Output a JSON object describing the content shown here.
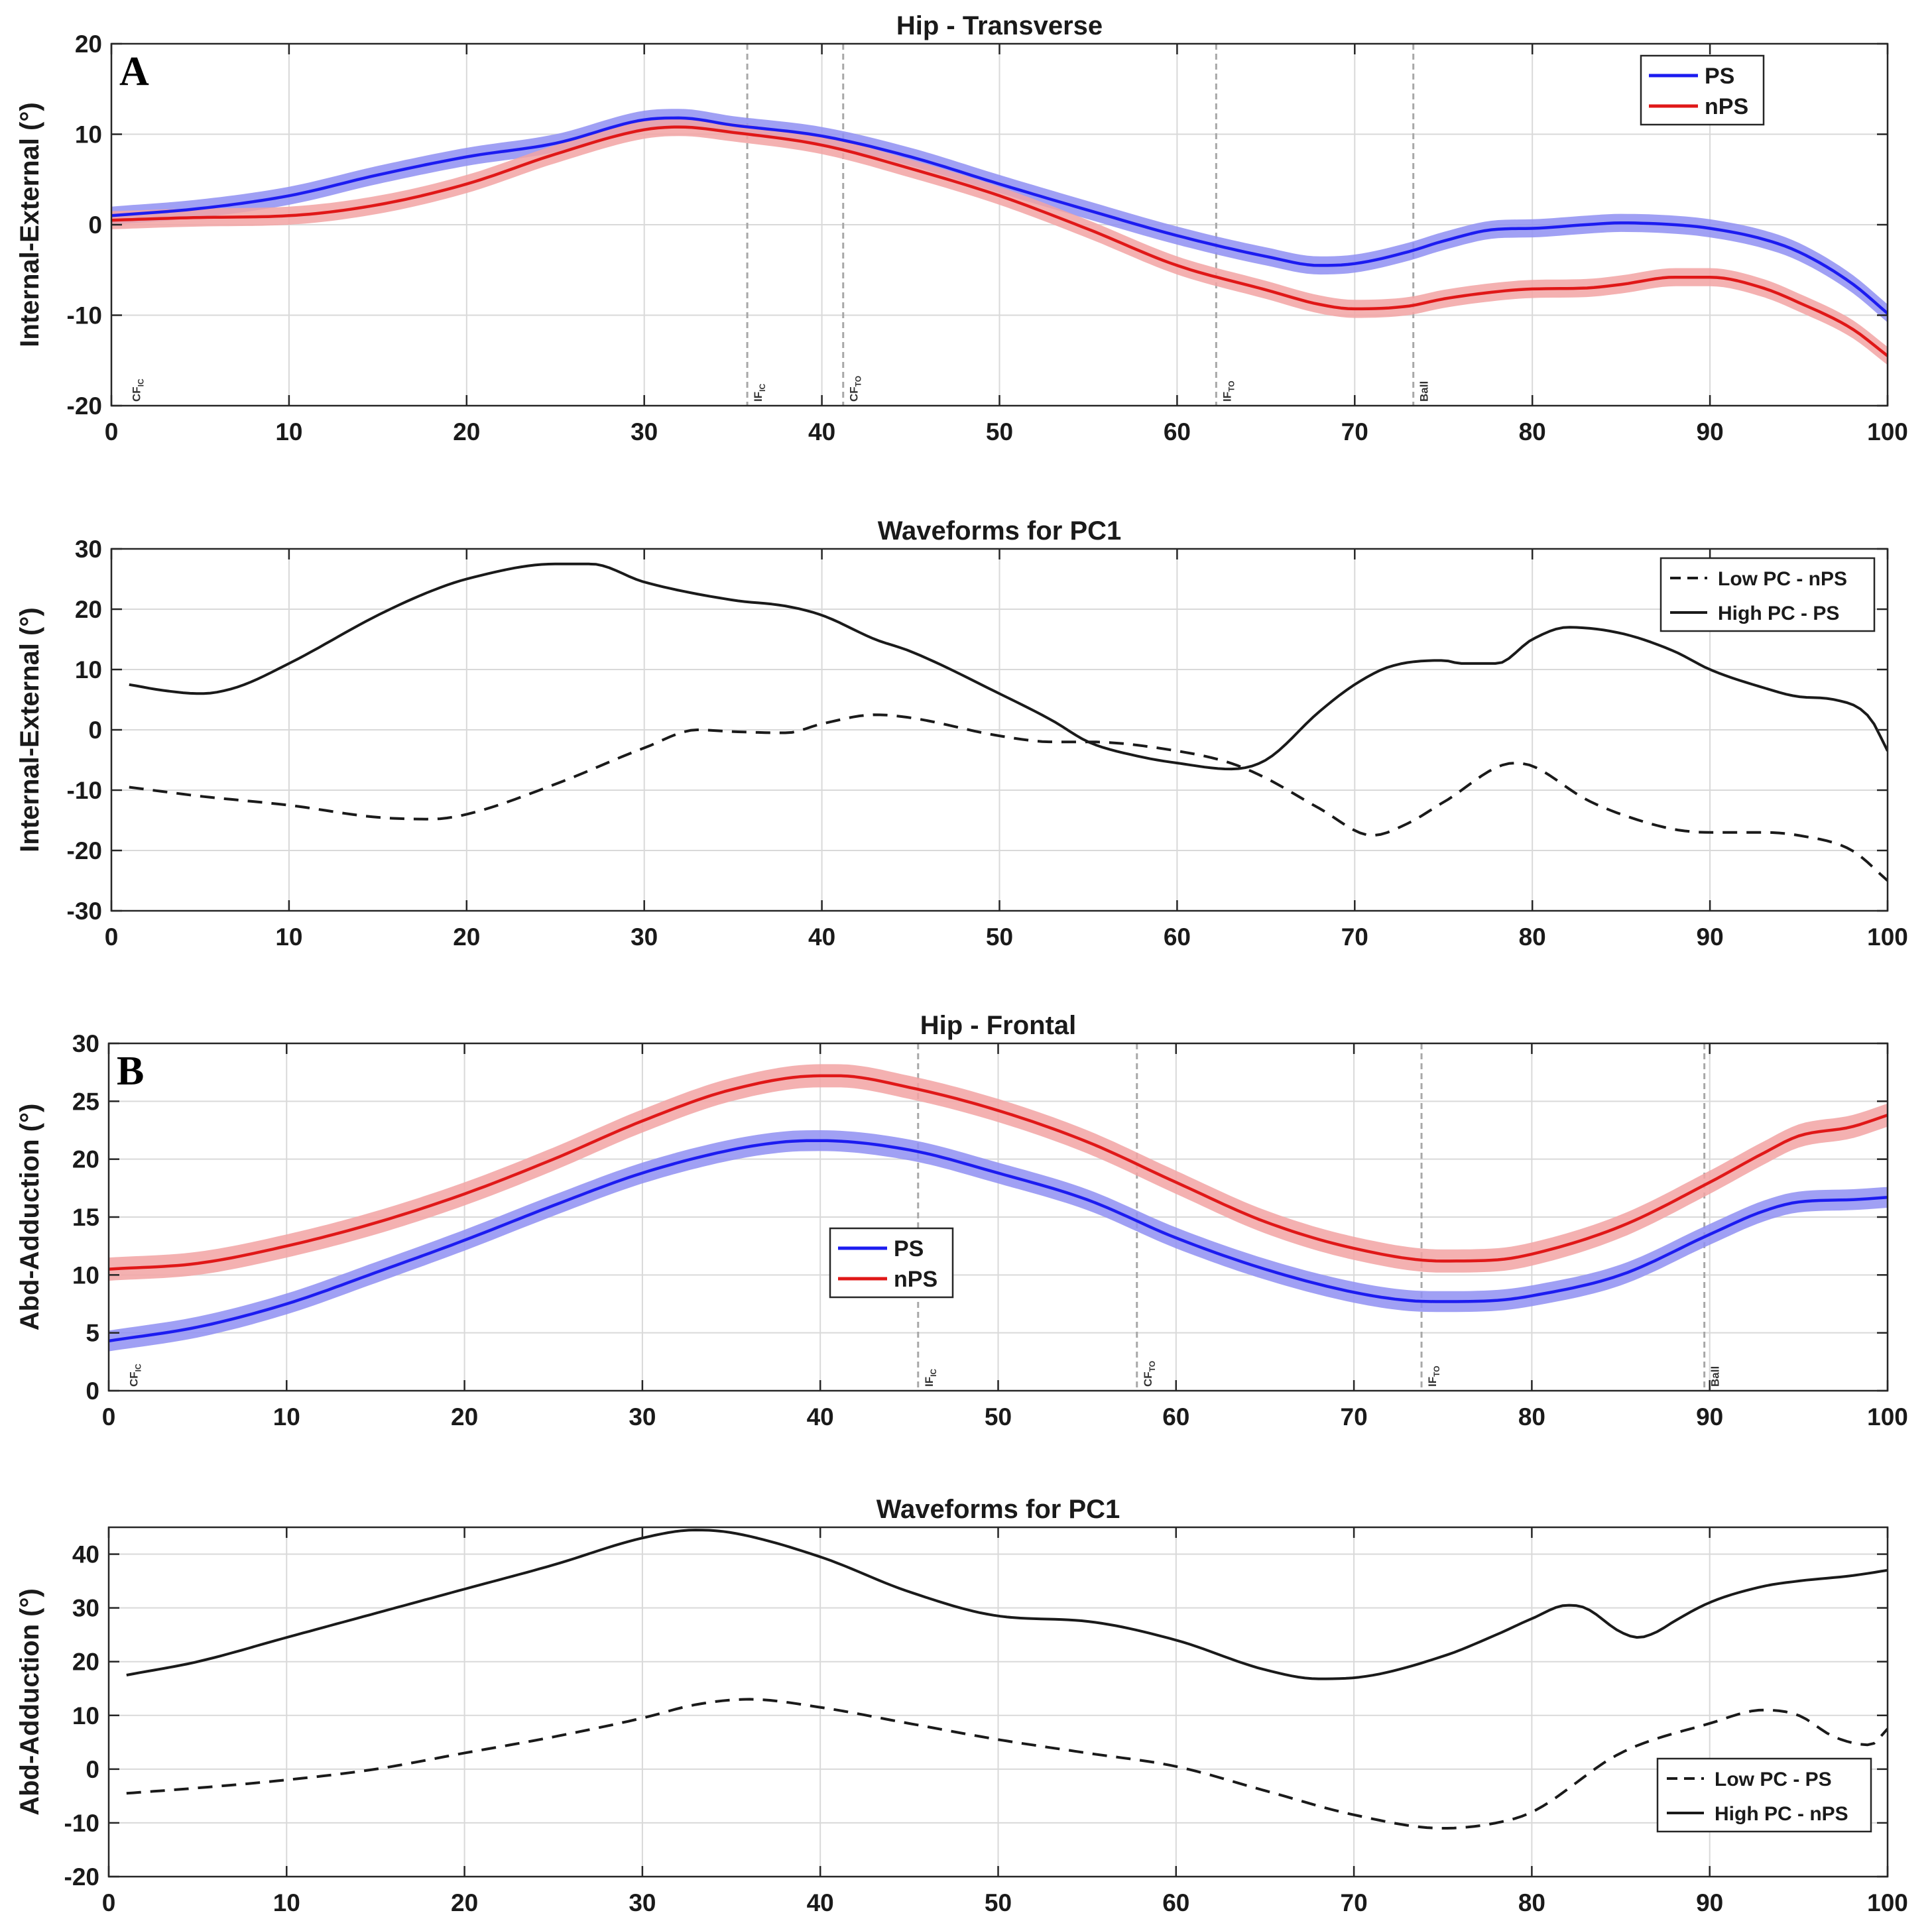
{
  "chart_data": [
    {
      "id": "hip-transverse",
      "type": "line",
      "title": "Hip - Transverse",
      "panel_label": "A",
      "xlabel": "",
      "ylabel": "Internal-External (°)",
      "xlim": [
        0,
        100
      ],
      "ylim": [
        -20,
        20
      ],
      "xticks": [
        0,
        10,
        20,
        30,
        40,
        50,
        60,
        70,
        80,
        90,
        100
      ],
      "yticks": [
        -20,
        -10,
        0,
        10,
        20
      ],
      "grid": true,
      "legend_position": "top-right",
      "events": [
        {
          "x": 0.8,
          "label": "CF",
          "sub": "IC"
        },
        {
          "x": 35.8,
          "label": "IF",
          "sub": "IC"
        },
        {
          "x": 41.2,
          "label": "CF",
          "sub": "TO"
        },
        {
          "x": 62.2,
          "label": "IF",
          "sub": "TO"
        },
        {
          "x": 73.3,
          "label": "Ball",
          "sub": ""
        }
      ],
      "series": [
        {
          "name": "PS",
          "color": "#1c1cf0",
          "band_color": "#8f8ff2",
          "band": 1.0,
          "x": [
            0,
            5,
            10,
            15,
            20,
            25,
            30,
            32,
            35,
            40,
            45,
            50,
            55,
            60,
            65,
            68,
            70,
            73,
            75,
            78,
            80,
            83,
            85,
            88,
            90,
            93,
            95,
            98,
            100
          ],
          "values": [
            1.0,
            1.8,
            3.2,
            5.5,
            7.5,
            9.0,
            11.6,
            11.8,
            11.0,
            9.8,
            7.5,
            4.5,
            1.6,
            -1.2,
            -3.5,
            -4.5,
            -4.3,
            -3.0,
            -1.8,
            -0.5,
            -0.4,
            0.0,
            0.2,
            0.0,
            -0.4,
            -1.6,
            -3.0,
            -6.5,
            -9.8
          ]
        },
        {
          "name": "nPS",
          "color": "#e01818",
          "band_color": "#f2a3a3",
          "band": 1.0,
          "x": [
            0,
            5,
            10,
            15,
            20,
            25,
            30,
            32,
            35,
            40,
            45,
            50,
            55,
            60,
            65,
            68,
            70,
            73,
            75,
            78,
            80,
            83,
            85,
            88,
            90,
            93,
            95,
            98,
            100
          ],
          "values": [
            0.5,
            0.8,
            1.0,
            2.2,
            4.5,
            7.8,
            10.5,
            10.8,
            10.2,
            8.8,
            6.2,
            3.2,
            -0.5,
            -4.5,
            -7.2,
            -8.8,
            -9.3,
            -9.0,
            -8.2,
            -7.4,
            -7.1,
            -7.0,
            -6.6,
            -5.8,
            -5.8,
            -7.0,
            -8.6,
            -11.5,
            -14.5
          ]
        }
      ]
    },
    {
      "id": "pc1-transverse",
      "type": "line",
      "title": "Waveforms for PC1",
      "xlabel": "",
      "ylabel": "Internal-External (°)",
      "xlim": [
        0,
        100
      ],
      "ylim": [
        -30,
        30
      ],
      "xticks": [
        0,
        10,
        20,
        30,
        40,
        50,
        60,
        70,
        80,
        90,
        100
      ],
      "yticks": [
        -30,
        -20,
        -10,
        0,
        10,
        20,
        30
      ],
      "grid": true,
      "legend_position": "top-right",
      "series": [
        {
          "name": "Low PC - nPS",
          "color": "#1a1a1a",
          "dash": true,
          "x": [
            1,
            5,
            10,
            15,
            18,
            20,
            25,
            30,
            33,
            35,
            38,
            40,
            43,
            45,
            50,
            53,
            55,
            60,
            63,
            65,
            68,
            71,
            73,
            75,
            79,
            80,
            83,
            85,
            88,
            90,
            93,
            95,
            98,
            100
          ],
          "values": [
            -9.5,
            -11.0,
            -12.5,
            -14.5,
            -14.8,
            -14.0,
            -9.0,
            -3.0,
            0.0,
            -0.3,
            -0.5,
            1.0,
            2.5,
            2.0,
            -1.0,
            -2.0,
            -2.0,
            -3.5,
            -5.5,
            -8.0,
            -13.0,
            -17.5,
            -15.5,
            -12.0,
            -5.5,
            -6.0,
            -11.5,
            -14.0,
            -16.5,
            -17.0,
            -17.0,
            -17.5,
            -20.0,
            -25.0
          ]
        },
        {
          "name": "High PC - PS",
          "color": "#1a1a1a",
          "dash": false,
          "x": [
            1,
            3,
            5,
            7,
            10,
            15,
            18,
            20,
            25,
            27,
            30,
            35,
            38,
            40,
            43,
            45,
            50,
            53,
            55,
            58,
            60,
            63,
            65,
            68,
            70,
            72,
            75,
            76,
            78,
            80,
            82,
            85,
            88,
            90,
            93,
            95,
            97,
            99,
            100
          ],
          "values": [
            7.5,
            6.5,
            6.0,
            7.0,
            11.0,
            19.0,
            23.0,
            25.0,
            27.5,
            27.5,
            24.5,
            21.5,
            20.5,
            19.0,
            15.0,
            13.0,
            6.0,
            1.5,
            -2.0,
            -4.5,
            -5.5,
            -6.5,
            -5.0,
            3.0,
            7.5,
            10.5,
            11.5,
            11.0,
            11.0,
            15.0,
            17.0,
            16.0,
            13.0,
            10.0,
            7.0,
            5.5,
            5.0,
            2.0,
            -3.5
          ]
        }
      ]
    },
    {
      "id": "hip-frontal",
      "type": "line",
      "title": "Hip - Frontal",
      "panel_label": "B",
      "xlabel": "",
      "ylabel": "Abd-Adduction (°)",
      "xlim": [
        0,
        100
      ],
      "ylim": [
        0,
        30
      ],
      "xticks": [
        0,
        10,
        20,
        30,
        40,
        50,
        60,
        70,
        80,
        90,
        100
      ],
      "yticks": [
        0,
        5,
        10,
        15,
        20,
        25,
        30
      ],
      "grid": true,
      "legend_position": "center",
      "events": [
        {
          "x": 0.8,
          "label": "CF",
          "sub": "IC"
        },
        {
          "x": 45.5,
          "label": "IF",
          "sub": "IC"
        },
        {
          "x": 57.8,
          "label": "CF",
          "sub": "TO"
        },
        {
          "x": 73.8,
          "label": "IF",
          "sub": "TO"
        },
        {
          "x": 89.7,
          "label": "Ball",
          "sub": ""
        }
      ],
      "series": [
        {
          "name": "PS",
          "color": "#1c1cf0",
          "band_color": "#8f8ff2",
          "band": 0.9,
          "x": [
            0,
            5,
            10,
            15,
            20,
            25,
            30,
            35,
            38,
            40,
            45,
            50,
            55,
            60,
            65,
            70,
            73,
            75,
            78,
            80,
            85,
            90,
            93,
            95,
            98,
            100
          ],
          "values": [
            4.3,
            5.5,
            7.5,
            10.2,
            13.0,
            16.0,
            18.8,
            20.8,
            21.5,
            21.6,
            20.8,
            18.8,
            16.5,
            13.2,
            10.5,
            8.5,
            7.8,
            7.7,
            7.8,
            8.2,
            10.0,
            13.5,
            15.5,
            16.3,
            16.5,
            16.7
          ]
        },
        {
          "name": "nPS",
          "color": "#e01818",
          "band_color": "#f2a3a3",
          "band": 1.0,
          "x": [
            0,
            5,
            10,
            15,
            20,
            25,
            30,
            35,
            40,
            41,
            45,
            50,
            55,
            60,
            65,
            70,
            75,
            78,
            80,
            85,
            90,
            93,
            95,
            98,
            100
          ],
          "values": [
            10.5,
            11.0,
            12.5,
            14.5,
            17.0,
            20.0,
            23.3,
            26.0,
            27.2,
            27.2,
            26.2,
            24.2,
            21.5,
            18.0,
            14.6,
            12.3,
            11.2,
            11.3,
            11.8,
            14.2,
            18.0,
            20.5,
            22.0,
            22.8,
            23.8
          ]
        }
      ]
    },
    {
      "id": "pc1-frontal",
      "type": "line",
      "title": "Waveforms for PC1",
      "xlabel": "",
      "ylabel": "Abd-Adduction (°)",
      "xlim": [
        0,
        100
      ],
      "ylim": [
        -20,
        45
      ],
      "xticks": [
        0,
        10,
        20,
        30,
        40,
        50,
        60,
        70,
        80,
        90,
        100
      ],
      "yticks": [
        -20,
        -10,
        0,
        10,
        20,
        30,
        40
      ],
      "grid": true,
      "legend_position": "bottom-right",
      "series": [
        {
          "name": "Low PC - PS",
          "color": "#1a1a1a",
          "dash": true,
          "x": [
            1,
            5,
            10,
            15,
            20,
            25,
            30,
            33,
            36,
            40,
            45,
            50,
            55,
            60,
            65,
            70,
            75,
            78,
            80,
            85,
            90,
            93,
            95,
            97,
            99,
            100
          ],
          "values": [
            -4.5,
            -3.5,
            -2.0,
            0.0,
            3.0,
            6.0,
            9.5,
            12.0,
            13.0,
            11.5,
            8.5,
            5.5,
            3.0,
            0.5,
            -4.0,
            -8.5,
            -11.0,
            -10.0,
            -8.0,
            3.0,
            8.5,
            11.0,
            10.0,
            6.0,
            4.5,
            7.5
          ]
        },
        {
          "name": "High PC - nPS",
          "color": "#1a1a1a",
          "dash": false,
          "x": [
            1,
            5,
            10,
            15,
            20,
            25,
            30,
            33,
            35,
            40,
            45,
            50,
            55,
            60,
            65,
            68,
            70,
            75,
            78,
            80,
            82,
            83,
            85,
            86,
            87,
            88,
            90,
            93,
            95,
            98,
            100
          ],
          "values": [
            17.5,
            20.0,
            24.5,
            29.0,
            33.5,
            38.0,
            43.0,
            44.5,
            44.0,
            39.5,
            33.0,
            28.5,
            27.5,
            24.0,
            18.5,
            16.8,
            17.0,
            21.0,
            25.0,
            28.0,
            30.5,
            30.0,
            25.5,
            24.5,
            25.5,
            27.5,
            31.0,
            34.0,
            35.0,
            36.0,
            37.0
          ]
        }
      ]
    }
  ]
}
